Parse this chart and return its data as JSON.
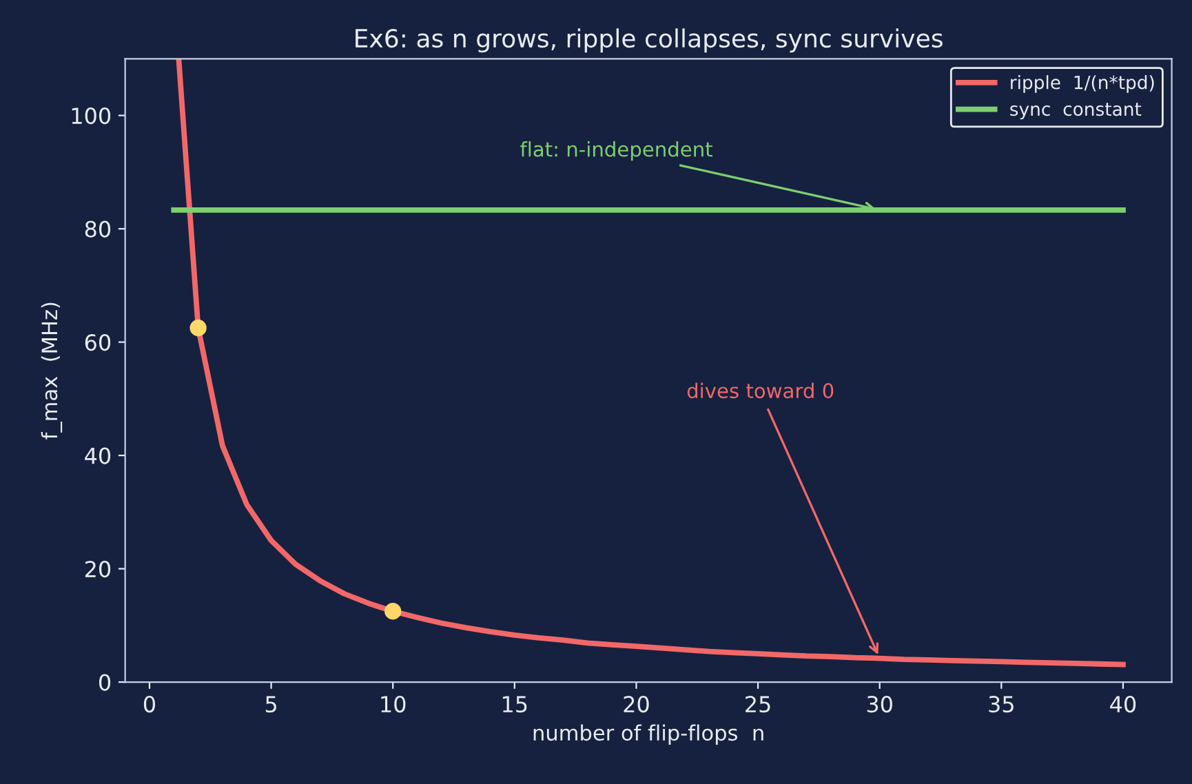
{
  "chart_data": {
    "type": "line",
    "title": "Ex6: as n grows, ripple collapses, sync survives",
    "xlabel": "number of flip-flops  n",
    "ylabel": "f_max  (MHz)",
    "xlim": [
      -1,
      42
    ],
    "xticks": [
      0,
      5,
      10,
      15,
      20,
      25,
      30,
      35,
      40
    ],
    "ylim": [
      0,
      110
    ],
    "yticks": [
      0,
      20,
      40,
      60,
      80,
      100
    ],
    "grid": false,
    "legend": "top right",
    "series": [
      {
        "name": "ripple  1/(n*tpd)",
        "color": "#f26868",
        "x": [
          1.2,
          2,
          3,
          4,
          5,
          6,
          7,
          8,
          9,
          10,
          11,
          12,
          13,
          14,
          15,
          16,
          17,
          18,
          19,
          20,
          21,
          22,
          23,
          24,
          25,
          26,
          27,
          28,
          29,
          30,
          31,
          32,
          33,
          34,
          35,
          36,
          37,
          38,
          39,
          40
        ],
        "values": [
          110,
          62.5,
          41.7,
          31.3,
          25,
          20.8,
          17.9,
          15.6,
          13.9,
          12.5,
          11.4,
          10.4,
          9.6,
          8.9,
          8.3,
          7.8,
          7.4,
          6.9,
          6.6,
          6.3,
          6.0,
          5.7,
          5.4,
          5.2,
          5.0,
          4.8,
          4.6,
          4.5,
          4.3,
          4.2,
          4.0,
          3.9,
          3.8,
          3.7,
          3.6,
          3.5,
          3.4,
          3.3,
          3.2,
          3.1
        ]
      },
      {
        "name": "sync  constant",
        "color": "#7dcf6f",
        "x": [
          1,
          40
        ],
        "values": [
          83.3,
          83.3
        ]
      },
      {
        "type": "scatter",
        "color": "#ffd76a",
        "x": [
          2,
          10
        ],
        "values": [
          62.5,
          12.5
        ],
        "marker": "circle"
      }
    ],
    "annotations": [
      {
        "text": "flat: n-independent",
        "x": 30,
        "y": 83.3
      },
      {
        "text": "dives toward 0",
        "x": 30,
        "y": 4.2
      }
    ]
  }
}
